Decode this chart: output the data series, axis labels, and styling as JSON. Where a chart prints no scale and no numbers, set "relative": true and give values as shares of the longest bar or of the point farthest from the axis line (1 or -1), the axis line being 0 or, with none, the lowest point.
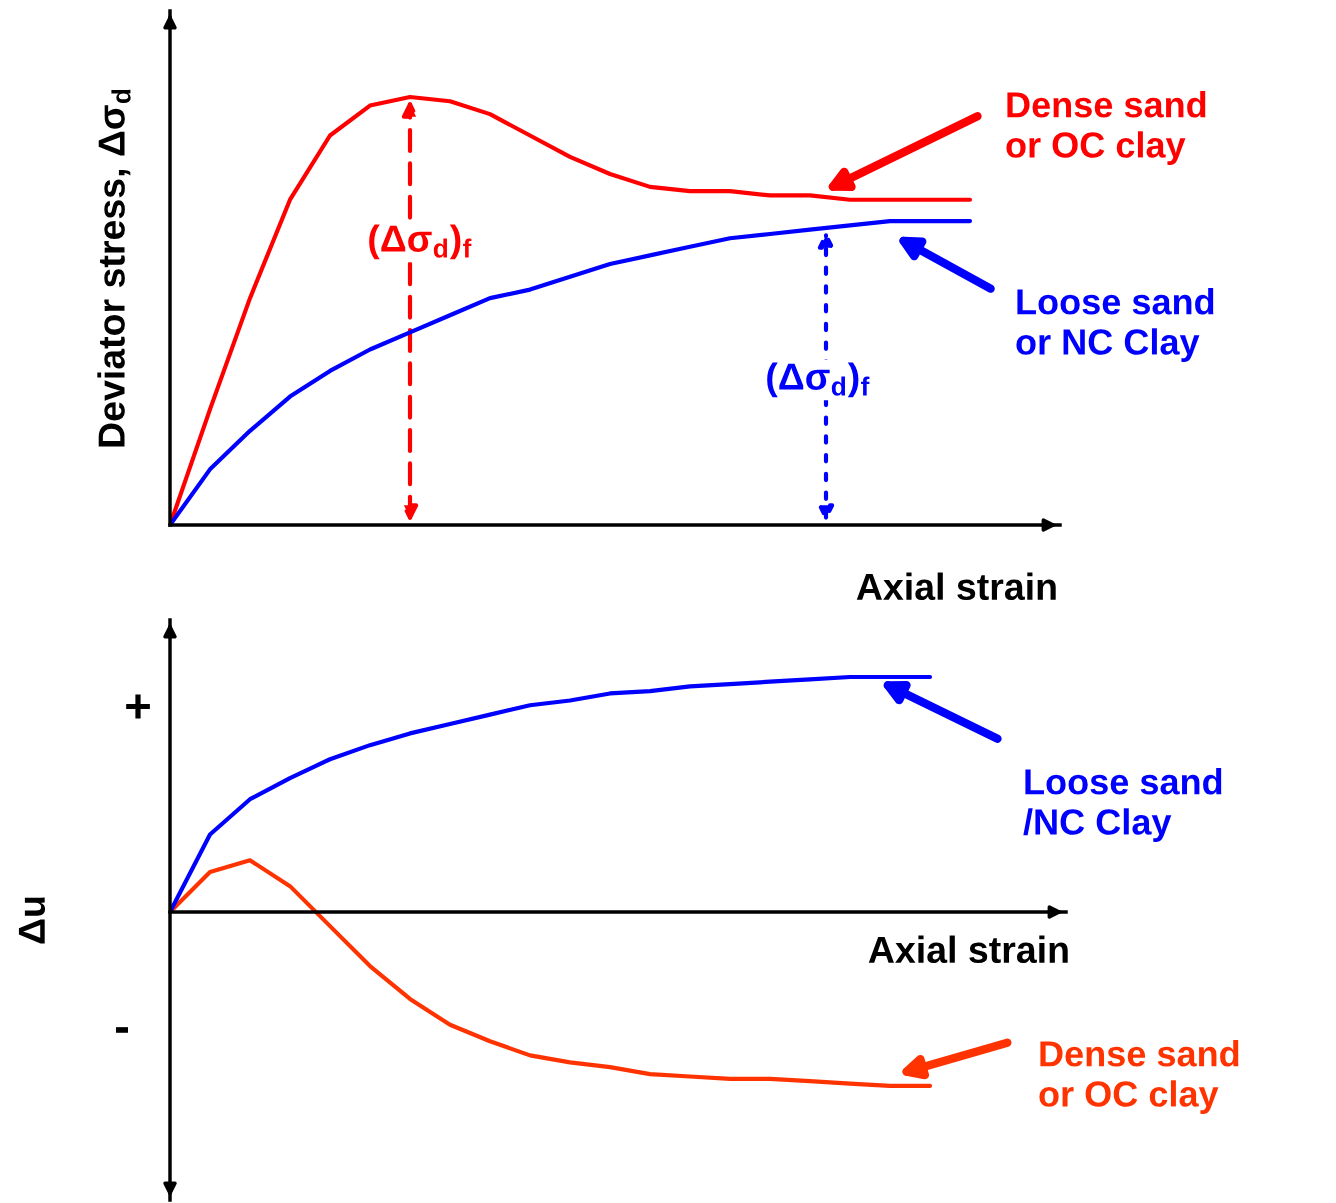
{
  "chart_data": [
    {
      "type": "line",
      "relative": true,
      "xlabel": "Axial strain",
      "ylabel": "Deviator stress, Δσ$_{d}$",
      "categories": [
        null,
        null,
        null,
        null,
        null,
        null,
        null,
        null,
        null,
        null,
        null,
        null,
        null,
        null,
        null,
        null,
        null,
        null,
        null,
        null,
        null
      ],
      "series": [
        {
          "name": "Dense sand\nor OC clay",
          "color": "#ff0000",
          "values": [
            0,
            0.27,
            0.53,
            0.76,
            0.91,
            0.98,
            1,
            0.99,
            0.96,
            0.91,
            0.86,
            0.82,
            0.79,
            0.78,
            0.78,
            0.77,
            0.77,
            0.76,
            0.76,
            0.76,
            0.76
          ]
        },
        {
          "name": "Loose sand\nor NC Clay",
          "color": "#0000ff",
          "values": [
            0,
            0.13,
            0.22,
            0.3,
            0.36,
            0.41,
            0.45,
            0.49,
            0.53,
            0.55,
            0.58,
            0.61,
            0.63,
            0.65,
            0.67,
            0.68,
            0.69,
            0.7,
            0.71,
            0.71,
            0.71
          ]
        }
      ],
      "annotations": [
        "(Δσ$_{d}$)$_{f}$",
        "(Δσ$_{d}$)$_{f}$"
      ]
    },
    {
      "type": "line",
      "relative": true,
      "xlabel": "Axial strain",
      "ylabel": "Δu",
      "categories": [
        null,
        null,
        null,
        null,
        null,
        null,
        null,
        null,
        null,
        null,
        null,
        null,
        null,
        null,
        null,
        null,
        null,
        null,
        null,
        null
      ],
      "series": [
        {
          "name": "Dense sand\nor OC clay",
          "color": "#ff3300",
          "values": [
            0,
            0.17,
            0.22,
            0.11,
            -0.06,
            -0.23,
            -0.37,
            -0.48,
            -0.55,
            -0.61,
            -0.64,
            -0.66,
            -0.69,
            -0.7,
            -0.71,
            -0.71,
            -0.72,
            -0.73,
            -0.74,
            -0.74
          ]
        },
        {
          "name": "Loose sand\n/NC Clay",
          "color": "#0000ff",
          "values": [
            0,
            0.33,
            0.48,
            0.57,
            0.65,
            0.71,
            0.76,
            0.8,
            0.84,
            0.88,
            0.9,
            0.93,
            0.94,
            0.96,
            0.97,
            0.98,
            0.99,
            1,
            1,
            1
          ]
        }
      ],
      "annotations": [
        "+",
        "-"
      ]
    }
  ]
}
